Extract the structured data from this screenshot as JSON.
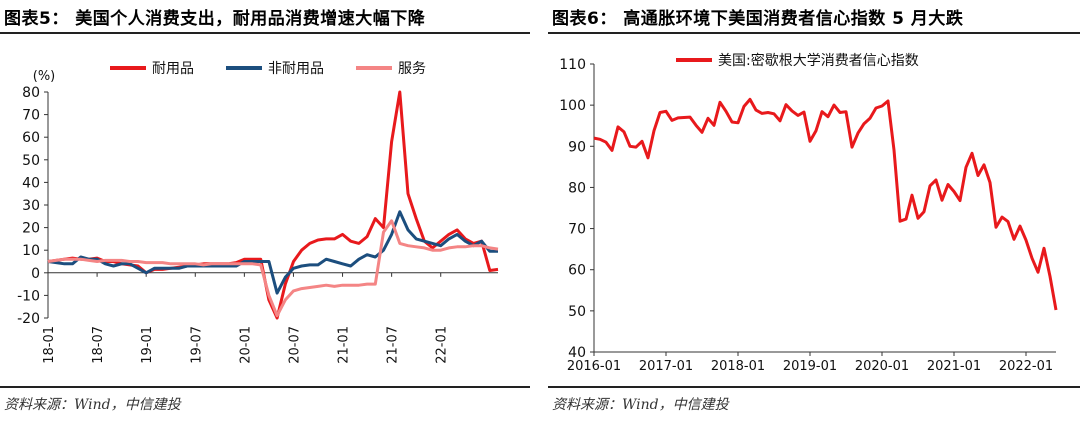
{
  "figures": [
    {
      "title": "图表5：  美国个人消费支出，耐用品消费增速大幅下降",
      "source": "资料来源：Wind，中信建投"
    },
    {
      "title": "图表6：  高通胀环境下美国消费者信心指数 5 月大跌",
      "source": "资料来源：Wind，中信建投"
    }
  ],
  "chart_data": [
    {
      "type": "line",
      "title": "",
      "unit_label": "(%)",
      "ylim": [
        -20,
        80
      ],
      "yticks": [
        -20,
        -10,
        0,
        10,
        20,
        30,
        40,
        50,
        60,
        70,
        80
      ],
      "x_tick_labels": [
        "18-01",
        "18-07",
        "19-01",
        "19-07",
        "20-01",
        "20-07",
        "21-01",
        "21-07",
        "22-01"
      ],
      "x_tick_index": [
        0,
        6,
        12,
        18,
        24,
        30,
        36,
        42,
        48
      ],
      "legend_position": "top",
      "grid": false,
      "series": [
        {
          "name": "耐用品",
          "color": "#e8191c",
          "values": [
            5,
            5.5,
            6,
            6.5,
            6,
            6,
            6.5,
            5,
            5,
            4,
            3.5,
            3,
            0,
            1.5,
            1.5,
            2,
            2.5,
            3,
            3.5,
            4,
            4,
            4,
            4,
            4.5,
            6,
            6,
            6,
            -12,
            -20,
            -5,
            5,
            10,
            13,
            14.5,
            15,
            15,
            17,
            14,
            13,
            16,
            24,
            20,
            58,
            80,
            35,
            24,
            14,
            11,
            14,
            17,
            19,
            15,
            13,
            14,
            1,
            1.5
          ]
        },
        {
          "name": "非耐用品",
          "color": "#1c4e7e",
          "values": [
            5,
            4.5,
            4,
            4,
            7,
            6,
            6,
            4,
            3,
            4,
            4,
            2,
            0,
            2,
            2,
            2,
            2,
            3,
            3,
            3,
            3,
            3,
            3,
            3,
            5,
            5,
            5,
            5,
            -9,
            -2,
            2,
            3,
            3.5,
            3.5,
            6,
            5,
            4,
            3,
            6,
            8,
            7,
            10,
            17,
            27,
            19,
            15,
            14,
            13,
            12,
            15,
            17,
            14,
            12,
            14,
            9.5,
            9.5
          ]
        },
        {
          "name": "服务",
          "color": "#f48585",
          "values": [
            5,
            5.5,
            6,
            6,
            6,
            5.5,
            5,
            5.5,
            5.5,
            5.5,
            5,
            5,
            4.5,
            4.5,
            4.5,
            4,
            4,
            4,
            4,
            3.5,
            4,
            4,
            4,
            4,
            4,
            4,
            3.5,
            -10,
            -19,
            -12,
            -8,
            -7,
            -6.5,
            -6,
            -5.5,
            -6,
            -5.5,
            -5.5,
            -5.5,
            -5,
            -5,
            18,
            23,
            13,
            12,
            11.5,
            11,
            10,
            10,
            11,
            11.5,
            11.5,
            12,
            12,
            11,
            10.5
          ]
        }
      ]
    },
    {
      "type": "line",
      "title": "",
      "ylim": [
        40,
        110
      ],
      "yticks": [
        40,
        50,
        60,
        70,
        80,
        90,
        100,
        110
      ],
      "x_tick_labels": [
        "2016-01",
        "2017-01",
        "2018-01",
        "2019-01",
        "2020-01",
        "2021-01",
        "2022-01"
      ],
      "x_tick_index": [
        0,
        12,
        24,
        36,
        48,
        60,
        72
      ],
      "legend_position": "top",
      "grid": false,
      "series": [
        {
          "name": "美国:密歇根大学消费者信心指数",
          "color": "#e8191c",
          "values": [
            92,
            91.7,
            91,
            89,
            94.7,
            93.5,
            90,
            89.8,
            91.2,
            87.2,
            93.8,
            98.2,
            98.5,
            96.3,
            96.9,
            97,
            97.1,
            95.1,
            93.4,
            96.8,
            95.1,
            100.7,
            98.5,
            95.9,
            95.7,
            99.7,
            101.4,
            98.8,
            98,
            98.2,
            97.9,
            96.2,
            100.1,
            98.6,
            97.5,
            98.3,
            91.2,
            93.8,
            98.4,
            97.2,
            100,
            98.2,
            98.4,
            89.8,
            93.2,
            95.5,
            96.8,
            99.3,
            99.8,
            101,
            89.1,
            71.8,
            72.3,
            78.1,
            72.5,
            74.1,
            80.4,
            81.8,
            76.9,
            80.7,
            79,
            76.8,
            84.9,
            88.3,
            82.9,
            85.5,
            81.2,
            70.3,
            72.8,
            71.7,
            67.4,
            70.6,
            67.2,
            62.8,
            59.4,
            65.2,
            58.4,
            50.2
          ]
        }
      ]
    }
  ]
}
